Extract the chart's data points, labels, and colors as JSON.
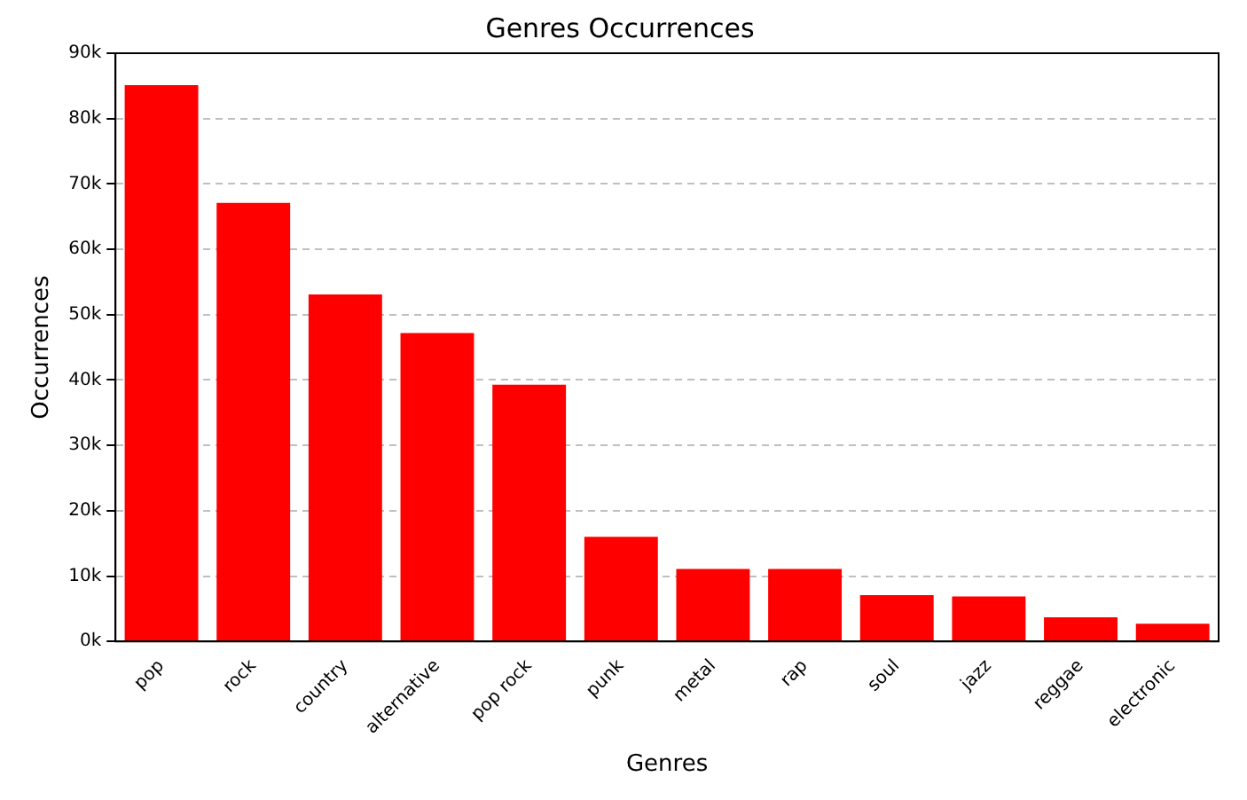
{
  "chart_data": {
    "type": "bar",
    "title": "Genres Occurrences",
    "xlabel": "Genres",
    "ylabel": "Occurrences",
    "categories": [
      "pop",
      "rock",
      "country",
      "alternative",
      "pop rock",
      "punk",
      "metal",
      "rap",
      "soul",
      "jazz",
      "reggae",
      "electronic"
    ],
    "values": [
      85100,
      67100,
      53100,
      47200,
      39300,
      16000,
      11100,
      11100,
      7100,
      6900,
      3700,
      2700
    ],
    "color": "#ff0000",
    "ylim": [
      0,
      90000
    ],
    "yticks": [
      {
        "value": 0,
        "label": "0k"
      },
      {
        "value": 10000,
        "label": "10k"
      },
      {
        "value": 20000,
        "label": "20k"
      },
      {
        "value": 30000,
        "label": "30k"
      },
      {
        "value": 40000,
        "label": "40k"
      },
      {
        "value": 50000,
        "label": "50k"
      },
      {
        "value": 60000,
        "label": "60k"
      },
      {
        "value": 70000,
        "label": "70k"
      },
      {
        "value": 80000,
        "label": "80k"
      },
      {
        "value": 90000,
        "label": "90k"
      }
    ],
    "grid": "y",
    "legend": false
  }
}
